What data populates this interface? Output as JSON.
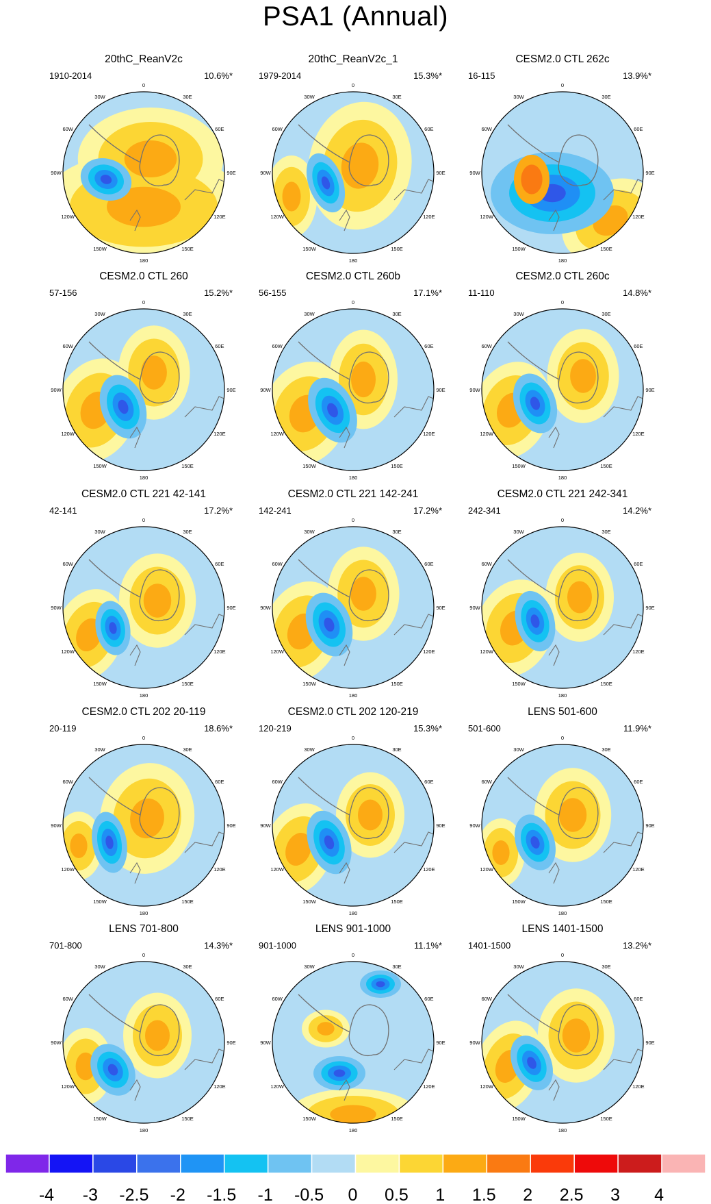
{
  "figure_title": "PSA1 (Annual)",
  "colors": {
    "neg2": "#2f57e8",
    "neg1_5": "#1f8ff5",
    "neg1": "#14c2f2",
    "neg0_5": "#6fc3f2",
    "neg0": "#b2dcf4",
    "pos0": "#fdf7a0",
    "pos0_5": "#fcd634",
    "pos1": "#fcaa14",
    "pos1_5": "#fa7a12",
    "coast": "#707070"
  },
  "chart_data": {
    "type": "polar-contour-map-grid",
    "projection": "south polar stereographic",
    "lon_labels": [
      "0",
      "30E",
      "60E",
      "90E",
      "120E",
      "150E",
      "180",
      "150W",
      "120W",
      "90W",
      "60W",
      "30W"
    ],
    "panels": [
      {
        "title": "20thC_ReanV2c",
        "period": "1910-2014",
        "variance": "10.6%*"
      },
      {
        "title": "20thC_ReanV2c_1",
        "period": "1979-2014",
        "variance": "15.3%*"
      },
      {
        "title": "CESM2.0 CTL 262c",
        "period": "16-115",
        "variance": "13.9%*"
      },
      {
        "title": "CESM2.0 CTL 260",
        "period": "57-156",
        "variance": "15.2%*"
      },
      {
        "title": "CESM2.0 CTL 260b",
        "period": "56-155",
        "variance": "17.1%*"
      },
      {
        "title": "CESM2.0 CTL 260c",
        "period": "11-110",
        "variance": "14.8%*"
      },
      {
        "title": "CESM2.0 CTL 221 42-141",
        "period": "42-141",
        "variance": "17.2%*"
      },
      {
        "title": "CESM2.0 CTL 221 142-241",
        "period": "142-241",
        "variance": "17.2%*"
      },
      {
        "title": "CESM2.0 CTL 221 242-341",
        "period": "242-341",
        "variance": "14.2%*"
      },
      {
        "title": "CESM2.0 CTL 202 20-119",
        "period": "20-119",
        "variance": "18.6%*"
      },
      {
        "title": "CESM2.0 CTL 202 120-219",
        "period": "120-219",
        "variance": "15.3%*"
      },
      {
        "title": "LENS 501-600",
        "period": "501-600",
        "variance": "11.9%*"
      },
      {
        "title": "LENS 701-800",
        "period": "701-800",
        "variance": "14.3%*"
      },
      {
        "title": "LENS 901-1000",
        "period": "901-1000",
        "variance": "11.1%*"
      },
      {
        "title": "LENS 1401-1500",
        "period": "1401-1500",
        "variance": "13.2%*"
      }
    ],
    "colorbar": {
      "labels": [
        "-4",
        "-3",
        "-2.5",
        "-2",
        "-1.5",
        "-1",
        "-0.5",
        "0",
        "0.5",
        "1",
        "1.5",
        "2",
        "2.5",
        "3",
        "4"
      ],
      "colors": [
        "#7f27e9",
        "#1414f5",
        "#2a48e6",
        "#3b72ec",
        "#1f94f5",
        "#14c2f2",
        "#6fc3f2",
        "#b2dcf4",
        "#fdf7a0",
        "#fcd634",
        "#fcaa14",
        "#fa7a12",
        "#fa3a0a",
        "#ee0a0a",
        "#cc1c1c",
        "#fab4b4"
      ]
    }
  }
}
